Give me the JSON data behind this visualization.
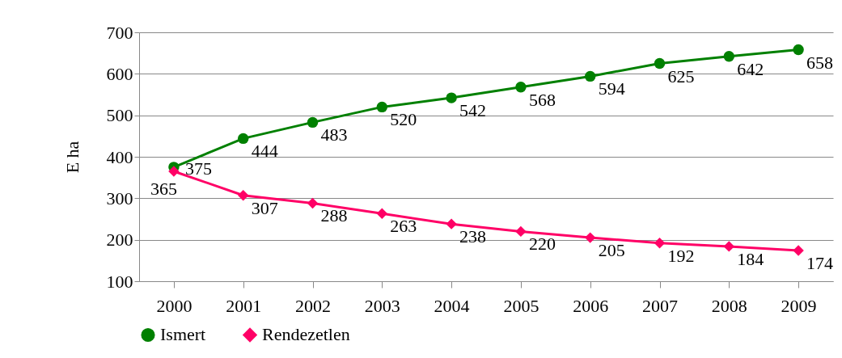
{
  "chart_data": {
    "type": "line",
    "ylabel": "E ha",
    "categories": [
      "2000",
      "2001",
      "2002",
      "2003",
      "2004",
      "2005",
      "2006",
      "2007",
      "2008",
      "2009"
    ],
    "series": [
      {
        "name": "Ismert",
        "color": "#008000",
        "marker": "circle",
        "values": [
          375,
          444,
          483,
          520,
          542,
          568,
          594,
          625,
          642,
          658
        ]
      },
      {
        "name": "Rendezetlen",
        "color": "#ff0066",
        "marker": "diamond",
        "values": [
          365,
          307,
          288,
          263,
          238,
          220,
          205,
          192,
          184,
          174
        ]
      }
    ],
    "ylim": [
      100,
      700
    ],
    "yticks": [
      100,
      200,
      300,
      400,
      500,
      600,
      700
    ],
    "grid": "y",
    "legend": "bottom",
    "data_labels": true
  }
}
